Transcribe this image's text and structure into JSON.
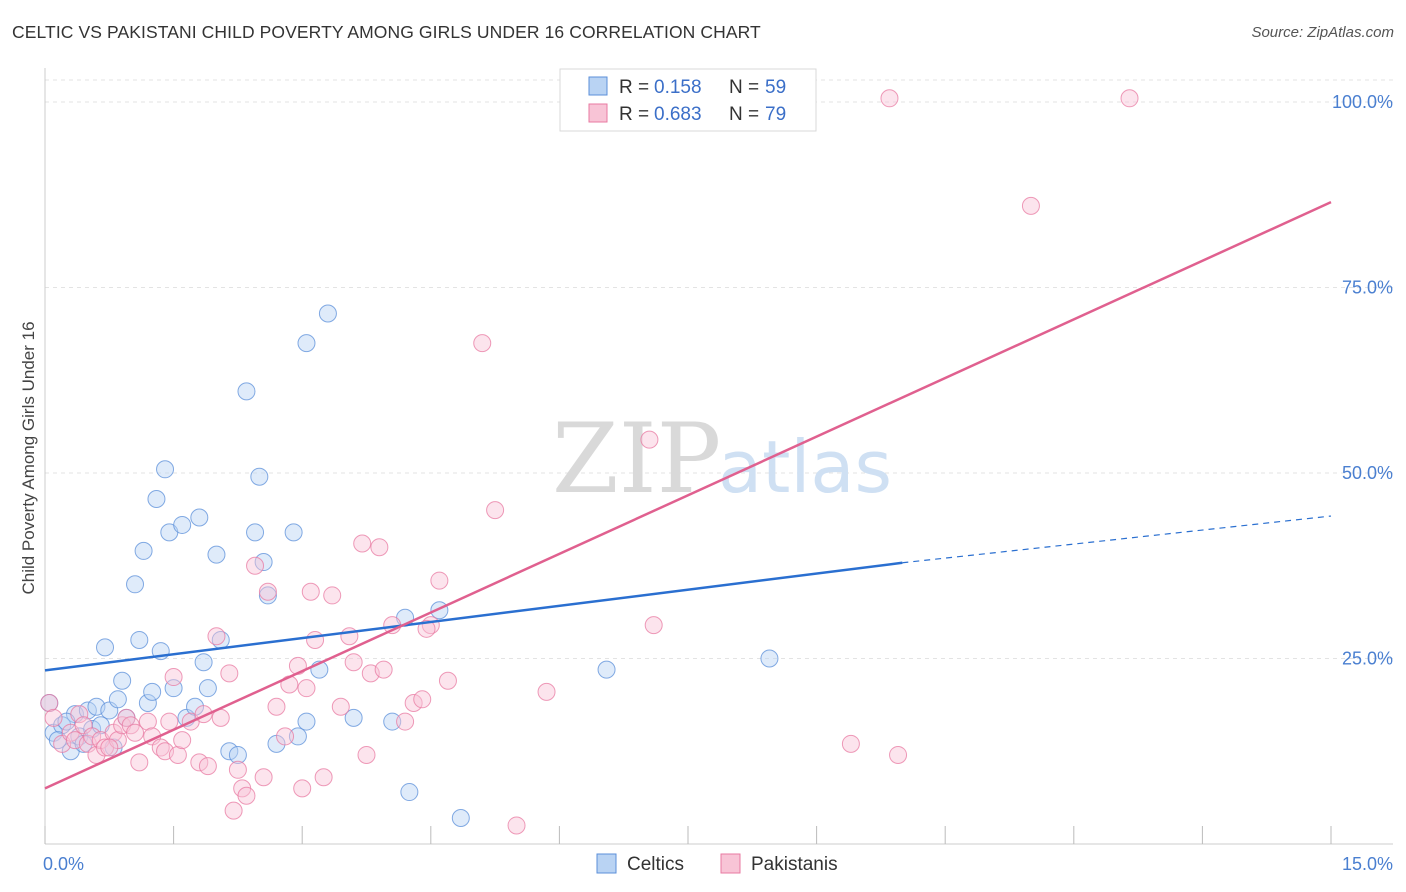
{
  "title": "CELTIC VS PAKISTANI CHILD POVERTY AMONG GIRLS UNDER 16 CORRELATION CHART",
  "source": "Source: ZipAtlas.com",
  "watermark": {
    "zip": "ZIP",
    "atlas": "atlas"
  },
  "legend": {
    "rows": [
      {
        "r_label": "R =",
        "r_value": "0.158",
        "n_label": "N =",
        "n_value": "59"
      },
      {
        "r_label": "R =",
        "r_value": "0.683",
        "n_label": "N =",
        "n_value": "79"
      }
    ]
  },
  "chart_data": {
    "type": "scatter",
    "title": "CELTIC VS PAKISTANI CHILD POVERTY AMONG GIRLS UNDER 16 CORRELATION CHART",
    "xlabel": "",
    "ylabel": "Child Poverty Among Girls Under 16",
    "xlim": [
      0,
      15
    ],
    "ylim": [
      0,
      100
    ],
    "x_tick_labels": [
      "0.0%",
      "15.0%"
    ],
    "y_ticks": [
      25,
      50,
      75,
      100
    ],
    "y_tick_labels": [
      "25.0%",
      "50.0%",
      "75.0%",
      "100.0%"
    ],
    "grid": true,
    "legend_position": "top-center",
    "series": [
      {
        "name": "Celtics",
        "color": "#5b8fd9",
        "fill": "#b9d3f3",
        "r": 0.158,
        "n": 59,
        "trend": {
          "x": [
            0,
            10.0
          ],
          "y": [
            23.4,
            37.9
          ],
          "dashed_to": [
            15.0,
            44.2
          ]
        },
        "points": [
          [
            0.05,
            19.0
          ],
          [
            0.1,
            15.0
          ],
          [
            0.2,
            16.0
          ],
          [
            0.3,
            12.5
          ],
          [
            0.35,
            17.5
          ],
          [
            0.4,
            14.5
          ],
          [
            0.5,
            18.0
          ],
          [
            0.55,
            15.5
          ],
          [
            0.6,
            18.5
          ],
          [
            0.7,
            26.5
          ],
          [
            0.75,
            18.0
          ],
          [
            0.85,
            19.5
          ],
          [
            0.9,
            22.0
          ],
          [
            0.95,
            17.0
          ],
          [
            1.05,
            35.0
          ],
          [
            1.1,
            27.5
          ],
          [
            1.15,
            39.5
          ],
          [
            1.2,
            19.0
          ],
          [
            1.3,
            46.5
          ],
          [
            1.35,
            26.0
          ],
          [
            1.4,
            50.5
          ],
          [
            1.45,
            42.0
          ],
          [
            1.5,
            21.0
          ],
          [
            1.6,
            43.0
          ],
          [
            1.65,
            17.0
          ],
          [
            1.75,
            18.5
          ],
          [
            1.8,
            44.0
          ],
          [
            1.85,
            24.5
          ],
          [
            1.9,
            21.0
          ],
          [
            2.0,
            39.0
          ],
          [
            2.05,
            27.5
          ],
          [
            2.15,
            12.5
          ],
          [
            2.25,
            12.0
          ],
          [
            2.35,
            61.0
          ],
          [
            2.45,
            42.0
          ],
          [
            2.5,
            49.5
          ],
          [
            2.55,
            38.0
          ],
          [
            2.6,
            33.5
          ],
          [
            2.9,
            42.0
          ],
          [
            2.95,
            14.5
          ],
          [
            3.05,
            16.5
          ],
          [
            3.05,
            67.5
          ],
          [
            3.2,
            23.5
          ],
          [
            3.3,
            71.5
          ],
          [
            3.6,
            17.0
          ],
          [
            4.05,
            16.5
          ],
          [
            4.2,
            30.5
          ],
          [
            4.25,
            7.0
          ],
          [
            4.6,
            31.5
          ],
          [
            4.85,
            3.5
          ],
          [
            6.55,
            23.5
          ],
          [
            8.45,
            25.0
          ],
          [
            0.15,
            14.0
          ],
          [
            0.45,
            13.5
          ],
          [
            0.65,
            16.0
          ],
          [
            0.8,
            13.0
          ],
          [
            1.25,
            20.5
          ],
          [
            2.7,
            13.5
          ],
          [
            0.25,
            16.5
          ]
        ]
      },
      {
        "name": "Pakistanis",
        "color": "#e87aa1",
        "fill": "#f8c4d6",
        "r": 0.683,
        "n": 79,
        "trend": {
          "x": [
            0,
            15.0
          ],
          "y": [
            7.5,
            86.5
          ]
        },
        "points": [
          [
            0.05,
            19.0
          ],
          [
            0.1,
            17.0
          ],
          [
            0.2,
            13.5
          ],
          [
            0.3,
            15.0
          ],
          [
            0.35,
            14.0
          ],
          [
            0.4,
            17.5
          ],
          [
            0.45,
            16.0
          ],
          [
            0.5,
            13.5
          ],
          [
            0.55,
            14.5
          ],
          [
            0.6,
            12.0
          ],
          [
            0.65,
            14.0
          ],
          [
            0.7,
            13.0
          ],
          [
            0.8,
            15.0
          ],
          [
            0.85,
            14.0
          ],
          [
            0.9,
            16.0
          ],
          [
            0.95,
            17.0
          ],
          [
            1.0,
            16.0
          ],
          [
            1.05,
            15.0
          ],
          [
            1.1,
            11.0
          ],
          [
            1.2,
            16.5
          ],
          [
            1.25,
            14.5
          ],
          [
            1.35,
            13.0
          ],
          [
            1.4,
            12.5
          ],
          [
            1.5,
            22.5
          ],
          [
            1.55,
            12.0
          ],
          [
            1.6,
            14.0
          ],
          [
            1.7,
            16.5
          ],
          [
            1.8,
            11.0
          ],
          [
            1.85,
            17.5
          ],
          [
            1.9,
            10.5
          ],
          [
            2.0,
            28.0
          ],
          [
            2.05,
            17.0
          ],
          [
            2.15,
            23.0
          ],
          [
            2.25,
            10.0
          ],
          [
            2.3,
            7.5
          ],
          [
            2.35,
            6.5
          ],
          [
            2.45,
            37.5
          ],
          [
            2.55,
            9.0
          ],
          [
            2.6,
            34.0
          ],
          [
            2.7,
            18.5
          ],
          [
            2.8,
            14.5
          ],
          [
            2.85,
            21.5
          ],
          [
            2.95,
            24.0
          ],
          [
            3.0,
            7.5
          ],
          [
            3.1,
            34.0
          ],
          [
            3.15,
            27.5
          ],
          [
            3.25,
            9.0
          ],
          [
            3.35,
            33.5
          ],
          [
            3.45,
            18.5
          ],
          [
            3.55,
            28.0
          ],
          [
            3.6,
            24.5
          ],
          [
            3.7,
            40.5
          ],
          [
            3.75,
            12.0
          ],
          [
            3.8,
            23.0
          ],
          [
            3.9,
            40.0
          ],
          [
            3.95,
            23.5
          ],
          [
            4.05,
            29.5
          ],
          [
            4.2,
            16.5
          ],
          [
            4.3,
            19.0
          ],
          [
            4.4,
            19.5
          ],
          [
            4.5,
            29.5
          ],
          [
            4.6,
            35.5
          ],
          [
            4.7,
            22.0
          ],
          [
            5.1,
            67.5
          ],
          [
            5.25,
            45.0
          ],
          [
            5.5,
            2.5
          ],
          [
            5.85,
            20.5
          ],
          [
            7.05,
            54.5
          ],
          [
            7.1,
            29.5
          ],
          [
            9.4,
            13.5
          ],
          [
            9.85,
            100.5
          ],
          [
            9.95,
            12.0
          ],
          [
            11.5,
            86.0
          ],
          [
            12.65,
            100.5
          ],
          [
            2.2,
            4.5
          ],
          [
            1.45,
            16.5
          ],
          [
            0.75,
            13.0
          ],
          [
            3.05,
            21.0
          ],
          [
            4.45,
            29.0
          ]
        ]
      }
    ]
  }
}
